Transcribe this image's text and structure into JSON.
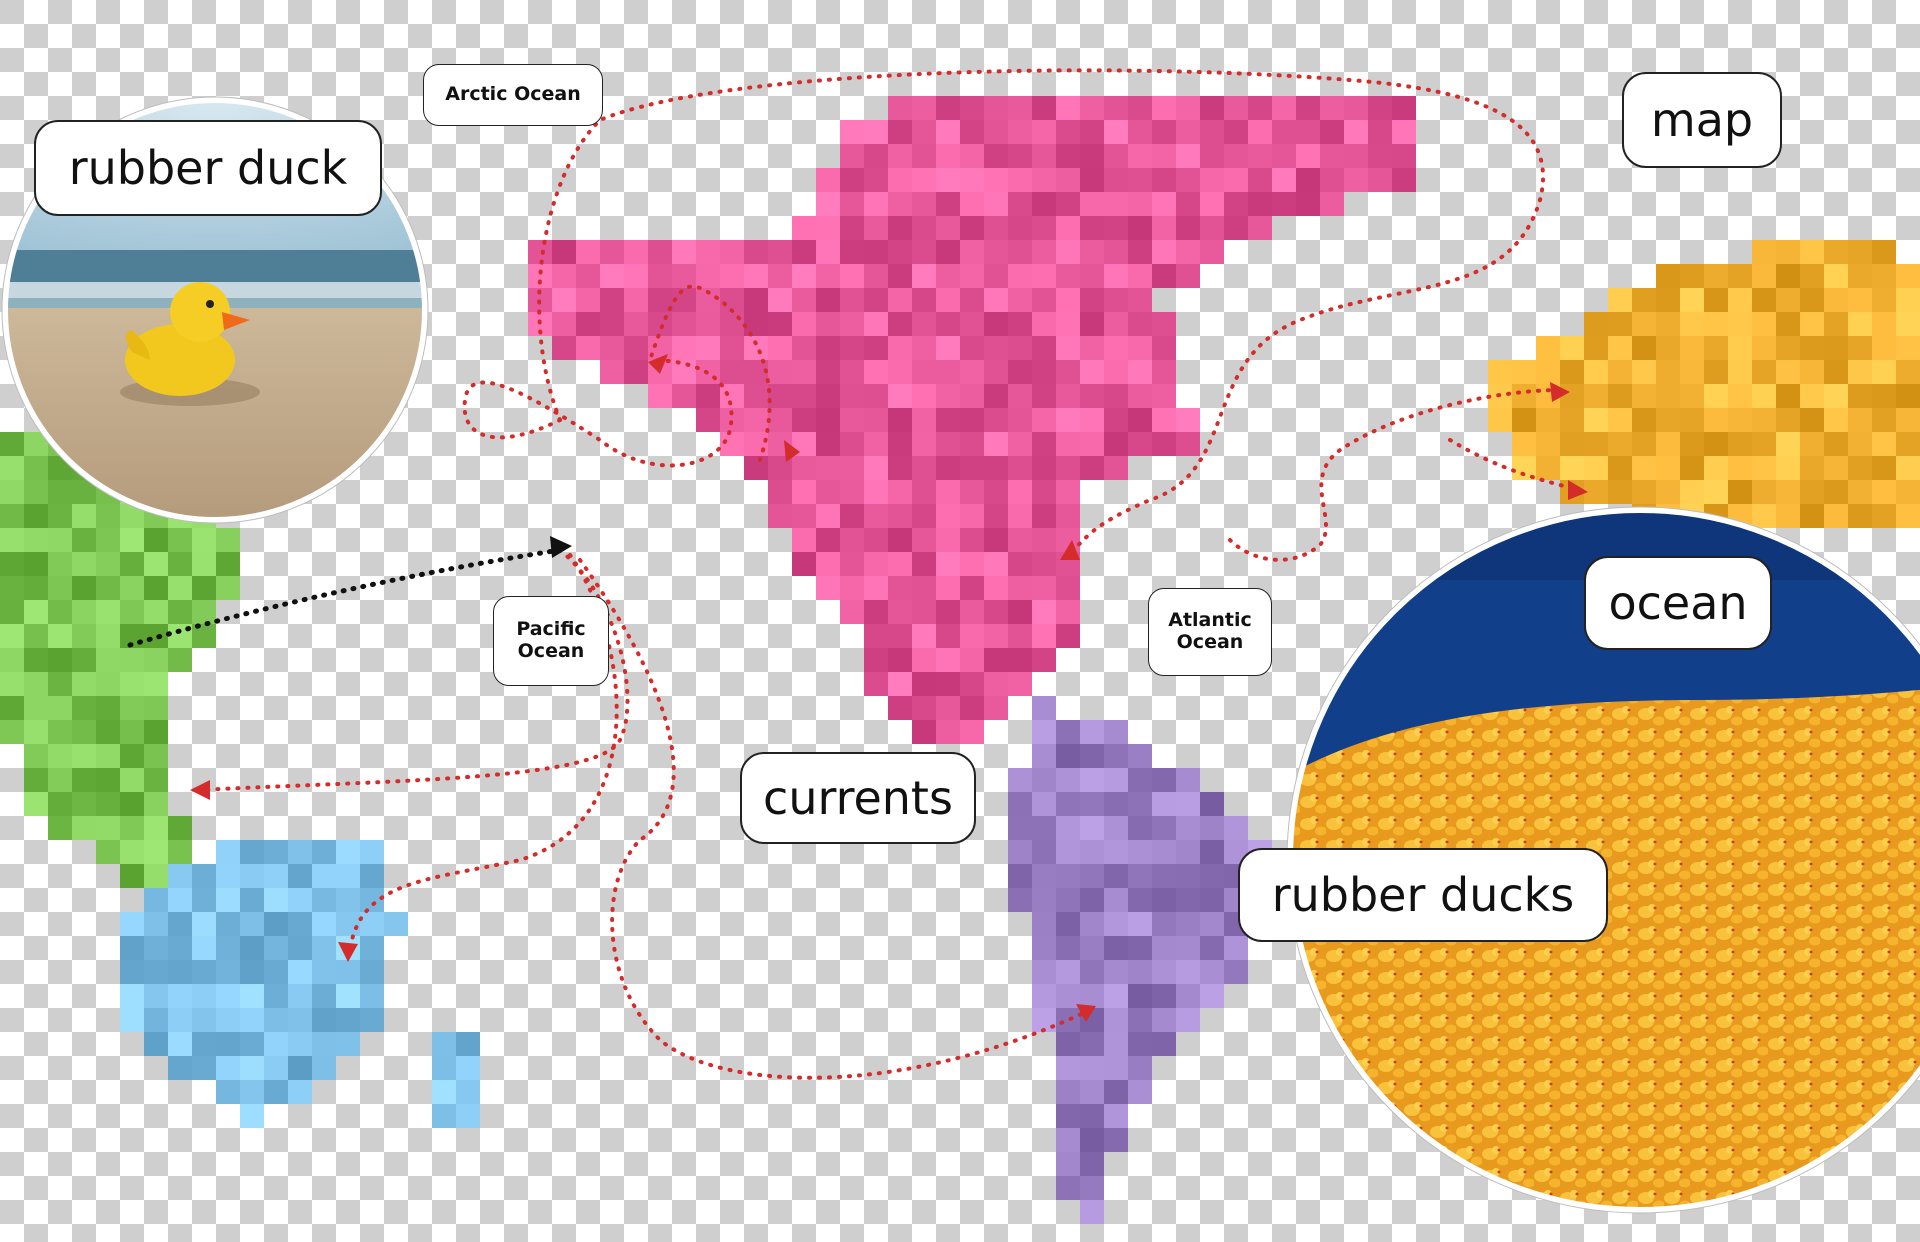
{
  "labels": {
    "rubber_duck": "rubber  duck",
    "map": "map",
    "currents": "currents",
    "ocean": "ocean",
    "rubber_ducks": "rubber  ducks",
    "arctic_ocean": "Arctic Ocean",
    "pacific_ocean": "Pacific\nOcean",
    "atlantic_ocean": "Atlantic\nOcean"
  },
  "colors": {
    "checker_gray": "#cfcfcf",
    "north_america": "#e85a9c",
    "south_america": "#9a7fc4",
    "asia": "#7cc552",
    "australia": "#7fc0e8",
    "europe": "#f5b335",
    "current_arrow": "#d42b2b",
    "drop_arrow": "#111111",
    "ocean_blue": "#123f8a",
    "duck_yellow": "#f7b733"
  },
  "icons": {
    "beach_duck_photo": "rubber-duck-on-beach",
    "ocean_ducks_photo": "flotilla-of-rubber-ducks"
  }
}
